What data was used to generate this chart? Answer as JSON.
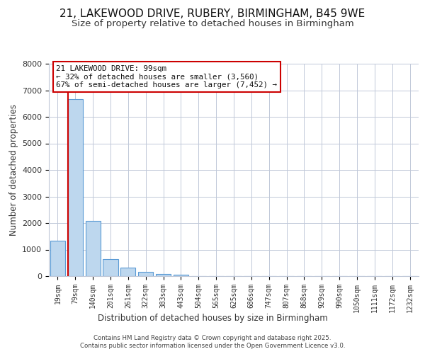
{
  "title": "21, LAKEWOOD DRIVE, RUBERY, BIRMINGHAM, B45 9WE",
  "subtitle": "Size of property relative to detached houses in Birmingham",
  "xlabel": "Distribution of detached houses by size in Birmingham",
  "ylabel": "Number of detached properties",
  "bar_labels": [
    "19sqm",
    "79sqm",
    "140sqm",
    "201sqm",
    "261sqm",
    "322sqm",
    "383sqm",
    "443sqm",
    "504sqm",
    "565sqm",
    "625sqm",
    "686sqm",
    "747sqm",
    "807sqm",
    "868sqm",
    "929sqm",
    "990sqm",
    "1050sqm",
    "1111sqm",
    "1172sqm",
    "1232sqm"
  ],
  "bar_values": [
    1340,
    6680,
    2090,
    630,
    310,
    160,
    80,
    60,
    0,
    0,
    0,
    0,
    0,
    0,
    0,
    0,
    0,
    0,
    0,
    0,
    0
  ],
  "bar_color": "#bdd7ee",
  "bar_edge_color": "#5b9bd5",
  "vline_color": "#cc0000",
  "ylim": [
    0,
    8000
  ],
  "yticks": [
    0,
    1000,
    2000,
    3000,
    4000,
    5000,
    6000,
    7000,
    8000
  ],
  "annotation_title": "21 LAKEWOOD DRIVE: 99sqm",
  "annotation_line1": "← 32% of detached houses are smaller (3,560)",
  "annotation_line2": "67% of semi-detached houses are larger (7,452) →",
  "annotation_box_color": "#ffffff",
  "annotation_box_edge": "#cc0000",
  "footer1": "Contains HM Land Registry data © Crown copyright and database right 2025.",
  "footer2": "Contains public sector information licensed under the Open Government Licence v3.0.",
  "bg_color": "#ffffff",
  "grid_color": "#c0c8d8",
  "title_fontsize": 11,
  "subtitle_fontsize": 9.5
}
